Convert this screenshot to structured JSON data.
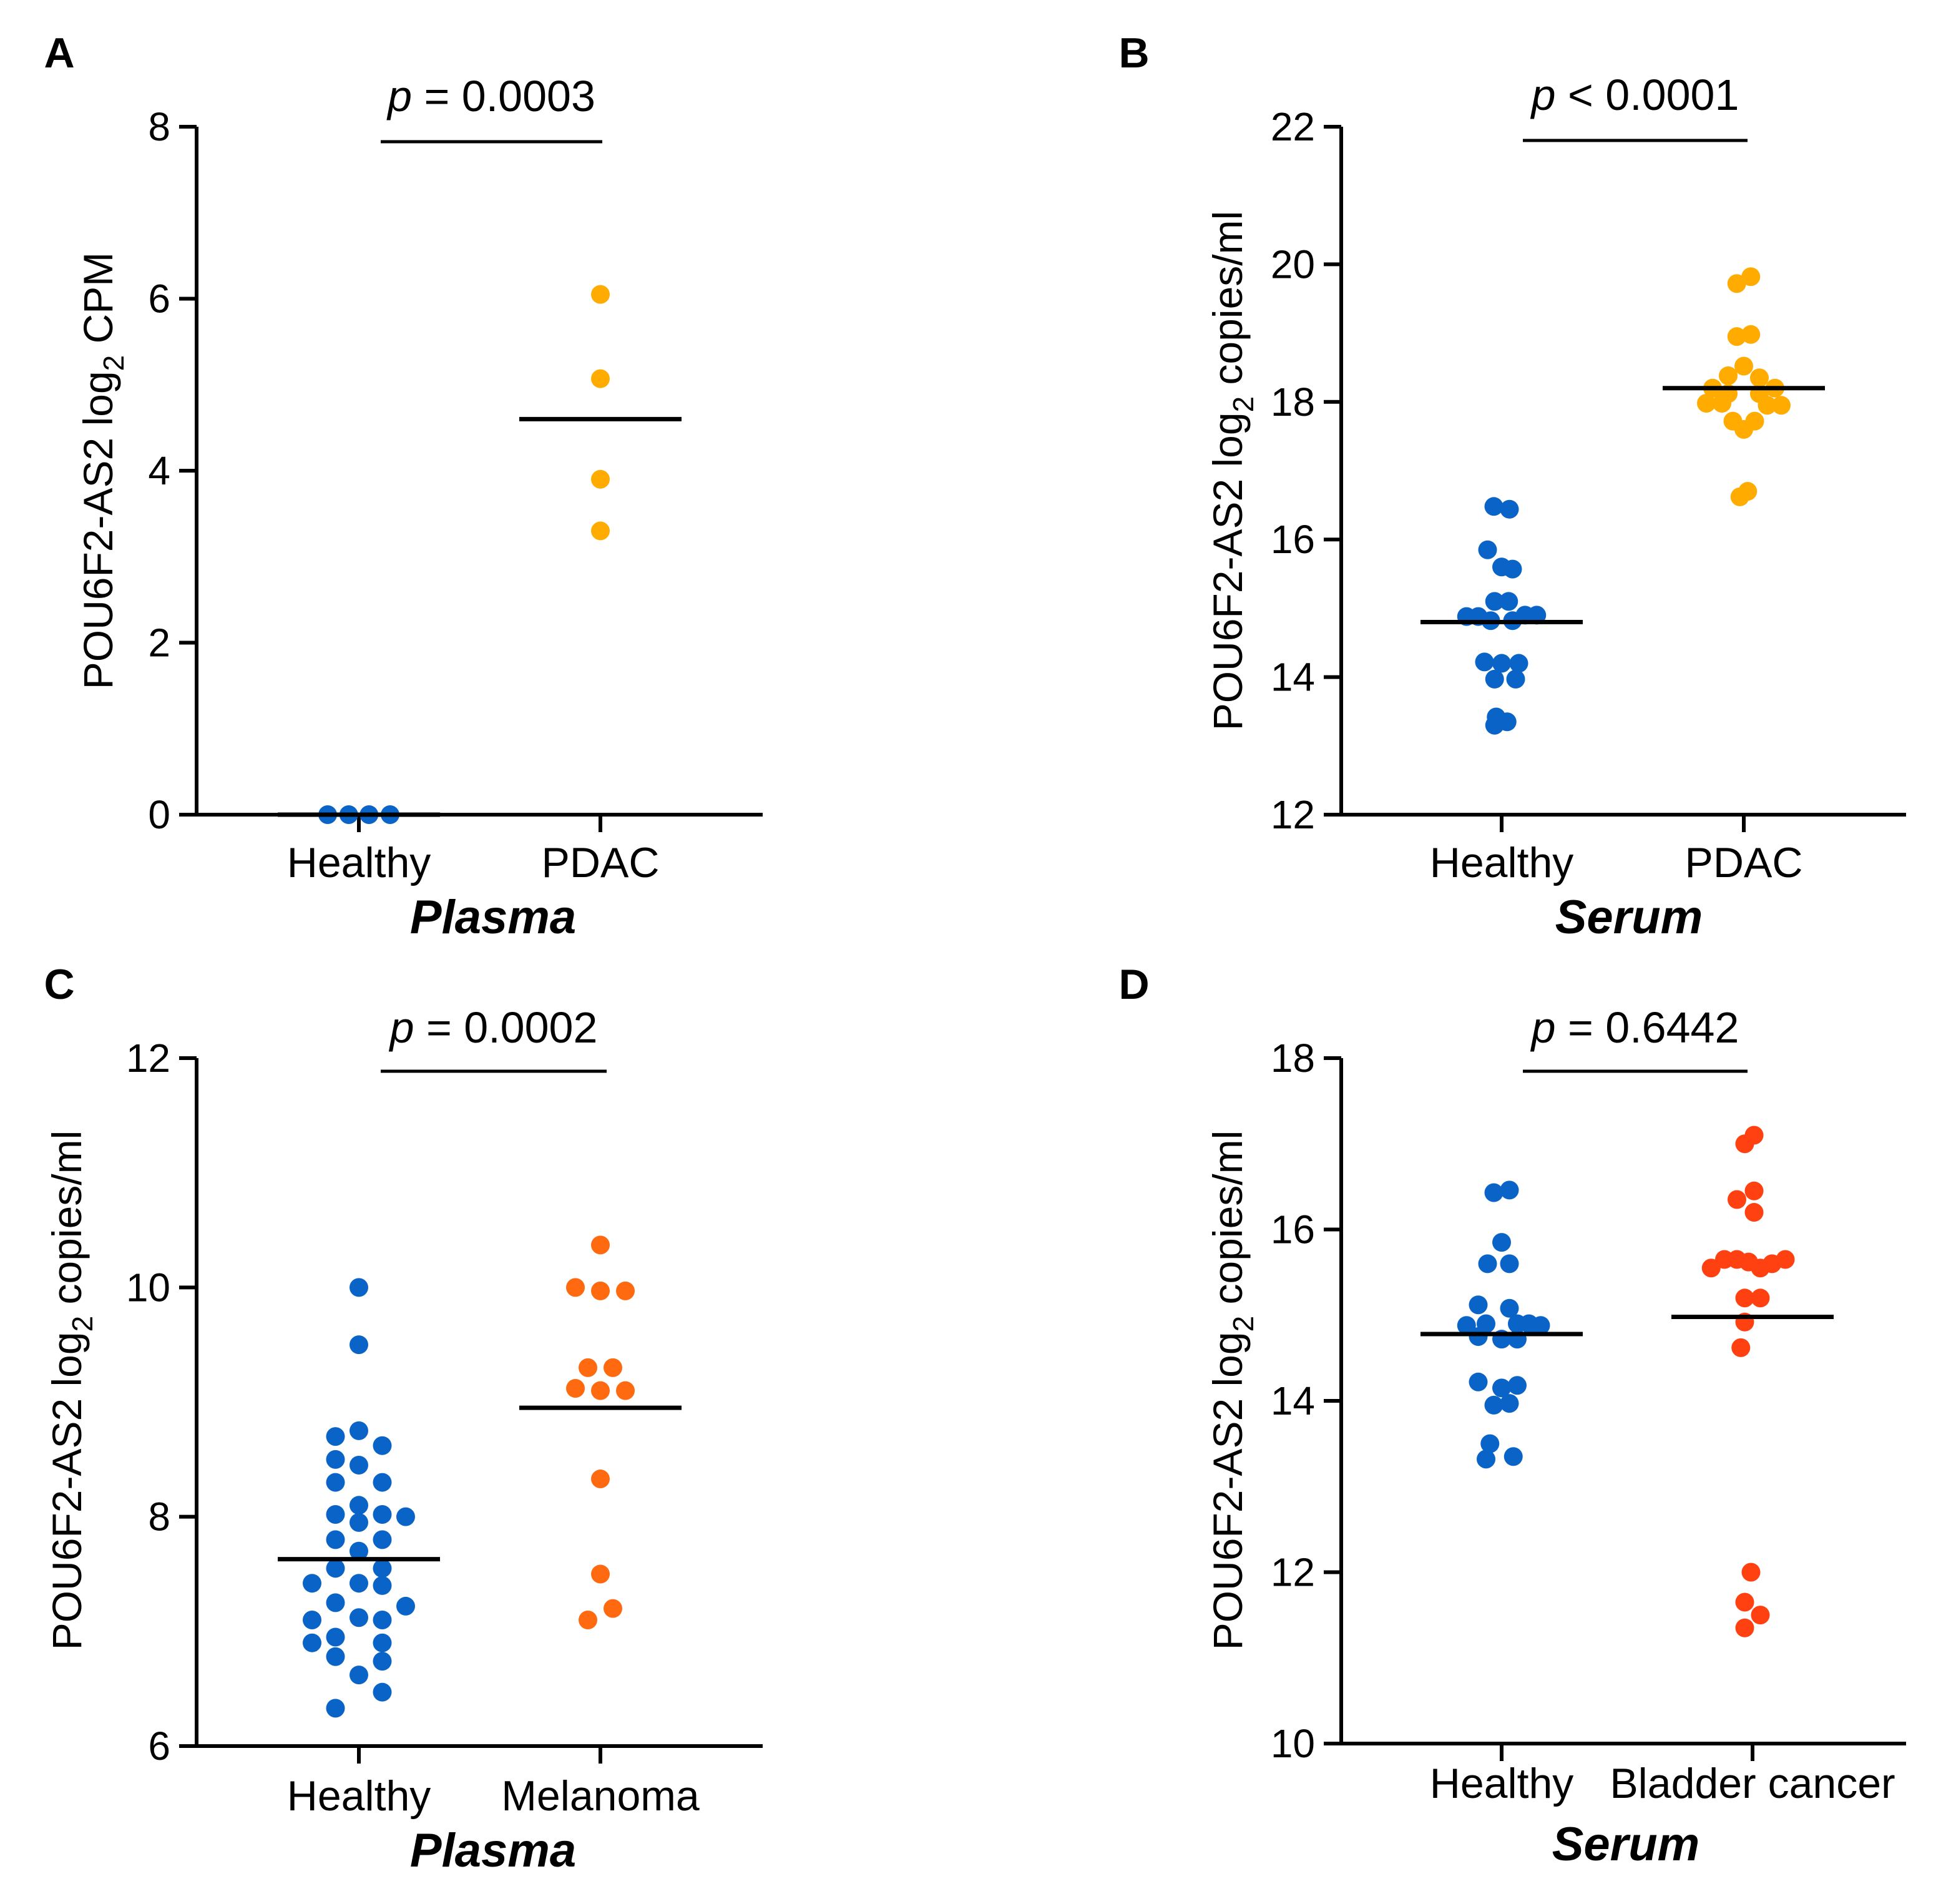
{
  "colors": {
    "healthy": "#0a64c8",
    "pdac": "#ffab00",
    "melanoma": "#ff6a10",
    "bladder": "#ff4010",
    "axis": "#000000"
  },
  "chart_data": [
    {
      "panel": "A",
      "type": "scatter",
      "ylabel_prefix": "POU6F2-AS2 log",
      "ylabel_subscript": "2",
      "ylabel_suffix": " CPM",
      "ylim": [
        0,
        8
      ],
      "yticks": [
        0,
        2,
        4,
        6,
        8
      ],
      "ytick_labels": [
        "0",
        "2",
        "4",
        "6",
        "8"
      ],
      "categories": [
        "Healthy",
        "PDAC"
      ],
      "sample_type": "Plasma",
      "p_symbol": "p",
      "p_text": " = 0.0003",
      "series": [
        {
          "name": "Healthy",
          "color_key": "healthy",
          "median": 0,
          "points": [
            [
              -0.4,
              0
            ],
            [
              -0.13,
              0
            ],
            [
              0.13,
              0
            ],
            [
              0.4,
              0
            ]
          ]
        },
        {
          "name": "PDAC",
          "color_key": "pdac",
          "median": 4.6,
          "points": [
            [
              0,
              6.05
            ],
            [
              0,
              5.07
            ],
            [
              0,
              3.9
            ],
            [
              0,
              3.3
            ]
          ]
        }
      ]
    },
    {
      "panel": "B",
      "type": "scatter",
      "ylabel_prefix": "POU6F2-AS2 log",
      "ylabel_subscript": "2",
      "ylabel_suffix": " copies/ml",
      "ylim": [
        12,
        22
      ],
      "yticks": [
        12,
        14,
        16,
        18,
        20,
        22
      ],
      "ytick_labels": [
        "12",
        "14",
        "16",
        "18",
        "20",
        "22"
      ],
      "categories": [
        "Healthy",
        "PDAC"
      ],
      "sample_type": "Serum",
      "p_symbol": "p",
      "p_text": " < 0.0001",
      "series": [
        {
          "name": "Healthy",
          "color_key": "healthy",
          "median": 14.8,
          "points": [
            [
              -0.1,
              16.48
            ],
            [
              0.1,
              16.44
            ],
            [
              -0.18,
              15.85
            ],
            [
              0,
              15.6
            ],
            [
              0.14,
              15.57
            ],
            [
              -0.09,
              15.1
            ],
            [
              0.09,
              15.1
            ],
            [
              -0.45,
              14.88
            ],
            [
              -0.3,
              14.88
            ],
            [
              0.3,
              14.9
            ],
            [
              0.45,
              14.9
            ],
            [
              -0.14,
              14.82
            ],
            [
              0.14,
              14.82
            ],
            [
              -0.22,
              14.22
            ],
            [
              0,
              14.2
            ],
            [
              0.22,
              14.2
            ],
            [
              -0.09,
              13.97
            ],
            [
              0.18,
              13.97
            ],
            [
              -0.07,
              13.42
            ],
            [
              0.07,
              13.35
            ],
            [
              -0.09,
              13.3
            ]
          ]
        },
        {
          "name": "PDAC",
          "color_key": "pdac",
          "median": 18.2,
          "points": [
            [
              0.09,
              19.82
            ],
            [
              -0.09,
              19.72
            ],
            [
              0.09,
              18.98
            ],
            [
              -0.09,
              18.95
            ],
            [
              0,
              18.52
            ],
            [
              -0.2,
              18.38
            ],
            [
              0.2,
              18.35
            ],
            [
              -0.4,
              18.2
            ],
            [
              0.4,
              18.2
            ],
            [
              -0.2,
              18.12
            ],
            [
              0.2,
              18.12
            ],
            [
              -0.48,
              17.98
            ],
            [
              -0.28,
              17.98
            ],
            [
              0.3,
              17.95
            ],
            [
              0.48,
              17.95
            ],
            [
              -0.14,
              17.72
            ],
            [
              0.14,
              17.72
            ],
            [
              0,
              17.6
            ],
            [
              -0.05,
              16.62
            ],
            [
              0.05,
              16.7
            ]
          ]
        }
      ]
    },
    {
      "panel": "C",
      "type": "scatter",
      "ylabel_prefix": "POU6F2-AS2 log",
      "ylabel_subscript": "2",
      "ylabel_suffix": " copies/ml",
      "ylim": [
        6,
        12
      ],
      "yticks": [
        6,
        8,
        10,
        12
      ],
      "ytick_labels": [
        "6",
        "8",
        "10",
        "12"
      ],
      "categories": [
        "Healthy",
        "Melanoma"
      ],
      "sample_type": "Plasma",
      "p_symbol": "p",
      "p_text": " = 0.0002",
      "series": [
        {
          "name": "Healthy",
          "color_key": "healthy",
          "median": 7.63,
          "points": [
            [
              0,
              10.0
            ],
            [
              0,
              9.5
            ],
            [
              -0.3,
              8.7
            ],
            [
              0,
              8.75
            ],
            [
              0.3,
              8.62
            ],
            [
              -0.3,
              8.5
            ],
            [
              0,
              8.45
            ],
            [
              -0.3,
              8.3
            ],
            [
              0.3,
              8.3
            ],
            [
              0,
              8.1
            ],
            [
              -0.3,
              8.02
            ],
            [
              0.3,
              8.02
            ],
            [
              0.6,
              8.0
            ],
            [
              0,
              7.95
            ],
            [
              -0.3,
              7.8
            ],
            [
              0.3,
              7.8
            ],
            [
              0,
              7.7
            ],
            [
              -0.3,
              7.55
            ],
            [
              0.3,
              7.55
            ],
            [
              -0.6,
              7.42
            ],
            [
              0,
              7.42
            ],
            [
              0.3,
              7.4
            ],
            [
              -0.3,
              7.25
            ],
            [
              0.6,
              7.22
            ],
            [
              0,
              7.12
            ],
            [
              -0.6,
              7.1
            ],
            [
              0.3,
              7.1
            ],
            [
              -0.3,
              6.95
            ],
            [
              -0.6,
              6.9
            ],
            [
              0.3,
              6.9
            ],
            [
              -0.3,
              6.78
            ],
            [
              0.3,
              6.74
            ],
            [
              0,
              6.62
            ],
            [
              0.3,
              6.47
            ],
            [
              -0.3,
              6.33
            ]
          ]
        },
        {
          "name": "Melanoma",
          "color_key": "melanoma",
          "median": 8.95,
          "points": [
            [
              0,
              10.37
            ],
            [
              -0.32,
              10.0
            ],
            [
              0,
              9.97
            ],
            [
              0.32,
              9.97
            ],
            [
              -0.16,
              9.3
            ],
            [
              0.16,
              9.3
            ],
            [
              -0.32,
              9.12
            ],
            [
              0,
              9.1
            ],
            [
              0.32,
              9.1
            ],
            [
              0,
              8.33
            ],
            [
              0,
              7.5
            ],
            [
              -0.16,
              7.1
            ],
            [
              0.16,
              7.2
            ]
          ]
        }
      ]
    },
    {
      "panel": "D",
      "type": "scatter",
      "ylabel_prefix": "POU6F2-AS2 log",
      "ylabel_subscript": "2",
      "ylabel_suffix": " copies/ml",
      "ylim": [
        10,
        18
      ],
      "yticks": [
        10,
        12,
        14,
        16,
        18
      ],
      "ytick_labels": [
        "10",
        "12",
        "14",
        "16",
        "18"
      ],
      "categories": [
        "Healthy",
        "Bladder cancer"
      ],
      "sample_type": "Serum",
      "p_symbol": "p",
      "p_text": " = 0.6442",
      "series": [
        {
          "name": "Healthy",
          "color_key": "healthy",
          "median": 14.78,
          "points": [
            [
              -0.1,
              16.43
            ],
            [
              0.1,
              16.46
            ],
            [
              0,
              15.85
            ],
            [
              -0.18,
              15.6
            ],
            [
              0.1,
              15.6
            ],
            [
              -0.3,
              15.12
            ],
            [
              0.1,
              15.08
            ],
            [
              -0.45,
              14.88
            ],
            [
              -0.2,
              14.9
            ],
            [
              0.2,
              14.9
            ],
            [
              0.35,
              14.9
            ],
            [
              0.5,
              14.88
            ],
            [
              -0.3,
              14.75
            ],
            [
              0,
              14.72
            ],
            [
              0.2,
              14.72
            ],
            [
              -0.3,
              14.22
            ],
            [
              0,
              14.15
            ],
            [
              0.2,
              14.18
            ],
            [
              -0.1,
              13.95
            ],
            [
              0.1,
              13.97
            ],
            [
              -0.15,
              13.5
            ],
            [
              0.15,
              13.35
            ],
            [
              -0.2,
              13.32
            ]
          ]
        },
        {
          "name": "Bladder cancer",
          "color_key": "bladder",
          "median": 14.98,
          "points": [
            [
              -0.1,
              17.0
            ],
            [
              0.02,
              17.1
            ],
            [
              -0.2,
              16.35
            ],
            [
              0.02,
              16.45
            ],
            [
              0.02,
              16.2
            ],
            [
              -0.36,
              15.65
            ],
            [
              -0.2,
              15.65
            ],
            [
              -0.05,
              15.62
            ],
            [
              0.25,
              15.6
            ],
            [
              0.42,
              15.65
            ],
            [
              -0.53,
              15.55
            ],
            [
              0.1,
              15.55
            ],
            [
              -0.1,
              15.2
            ],
            [
              0.1,
              15.2
            ],
            [
              -0.1,
              14.92
            ],
            [
              -0.15,
              14.62
            ],
            [
              -0.02,
              12.0
            ],
            [
              -0.1,
              11.65
            ],
            [
              0.1,
              11.5
            ],
            [
              -0.1,
              11.35
            ]
          ]
        }
      ]
    }
  ]
}
